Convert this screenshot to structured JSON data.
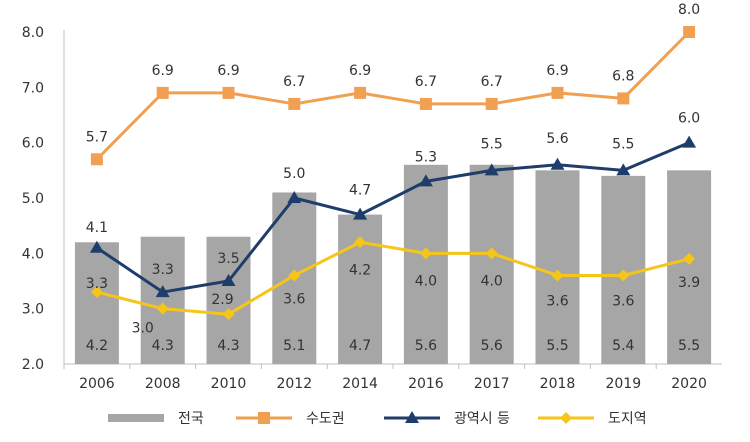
{
  "chart_data": {
    "type": "bar",
    "categories": [
      "2006",
      "2008",
      "2010",
      "2012",
      "2014",
      "2016",
      "2017",
      "2018",
      "2019",
      "2020"
    ],
    "ylim": [
      2.0,
      8.0
    ],
    "yticks": [
      "2.0",
      "3.0",
      "4.0",
      "5.0",
      "6.0",
      "7.0",
      "8.0"
    ],
    "grid": false,
    "legend_position": "bottom",
    "series": [
      {
        "name": "전국",
        "kind": "bar",
        "color": "#a6a6a6",
        "values": [
          4.2,
          4.3,
          4.3,
          5.1,
          4.7,
          5.6,
          5.6,
          5.5,
          5.4,
          5.5
        ],
        "labels": [
          "4.2",
          "4.3",
          "4.3",
          "5.1",
          "4.7",
          "5.6",
          "5.6",
          "5.5",
          "5.4",
          "5.5"
        ]
      },
      {
        "name": "수도권",
        "kind": "line",
        "marker": "square",
        "color": "#f0a050",
        "values": [
          5.7,
          6.9,
          6.9,
          6.7,
          6.9,
          6.7,
          6.7,
          6.9,
          6.8,
          8.0
        ],
        "labels": [
          "5.7",
          "6.9",
          "6.9",
          "6.7",
          "6.9",
          "6.7",
          "6.7",
          "6.9",
          "6.8",
          "8.0"
        ]
      },
      {
        "name": "광역시 등",
        "kind": "line",
        "marker": "triangle",
        "color": "#1f3d6b",
        "values": [
          4.1,
          3.3,
          3.5,
          5.0,
          4.7,
          5.3,
          5.5,
          5.6,
          5.5,
          6.0
        ],
        "labels": [
          "4.1",
          "3.3",
          "3.5",
          "5.0",
          "4.7",
          "5.3",
          "5.5",
          "5.6",
          "5.5",
          "6.0"
        ]
      },
      {
        "name": "도지역",
        "kind": "line",
        "marker": "diamond",
        "color": "#f5c518",
        "values": [
          3.3,
          3.0,
          2.9,
          3.6,
          4.2,
          4.0,
          4.0,
          3.6,
          3.6,
          3.9
        ],
        "labels": [
          "3.3",
          "3.0",
          "2.9",
          "3.6",
          "4.2",
          "4.0",
          "4.0",
          "3.6",
          "3.6",
          "3.9"
        ]
      }
    ]
  }
}
